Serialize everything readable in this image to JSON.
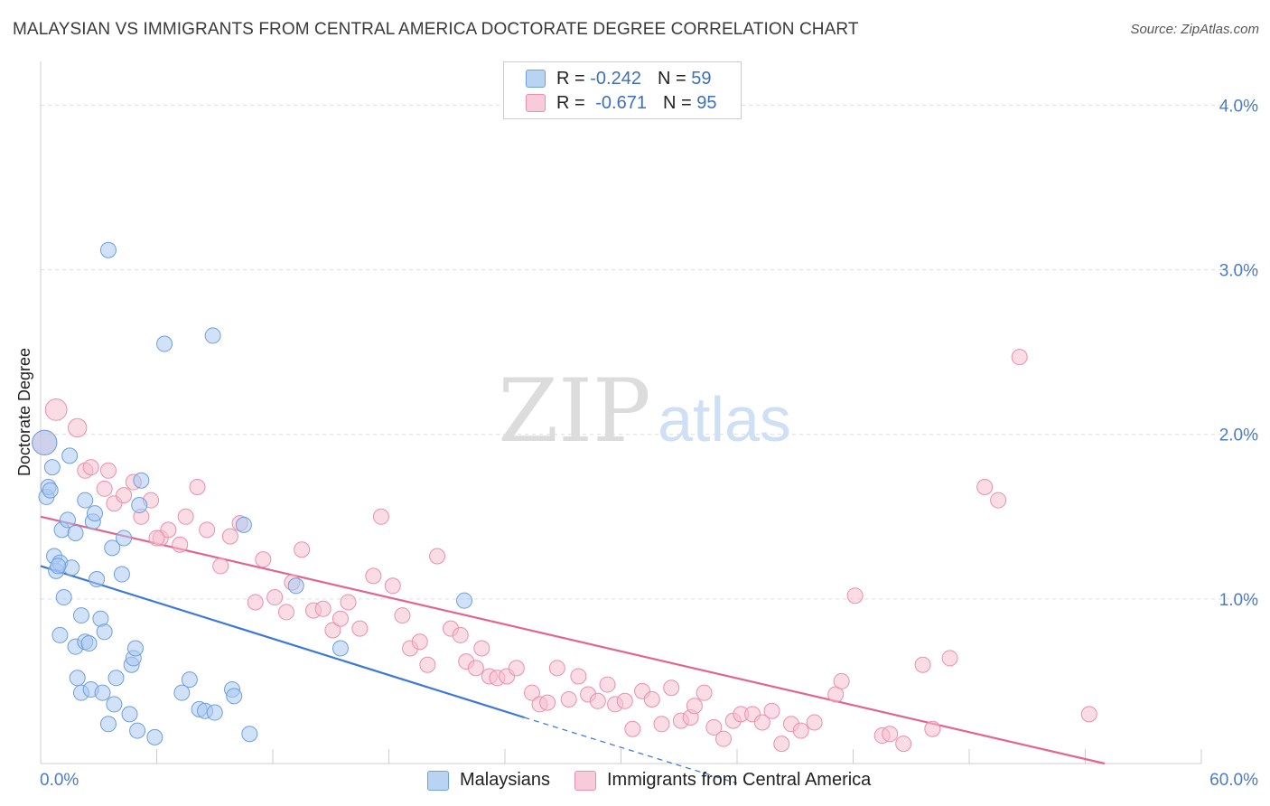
{
  "title": "MALAYSIAN VS IMMIGRANTS FROM CENTRAL AMERICA DOCTORATE DEGREE CORRELATION CHART",
  "source": "Source: ZipAtlas.com",
  "watermark": {
    "zip": "ZIP",
    "atlas": "atlas"
  },
  "legend": {
    "r_label": "R = ",
    "n_label": "N = ",
    "rows": [
      {
        "r": "-0.242",
        "n": "59"
      },
      {
        "r": "-0.671",
        "n": "95"
      }
    ]
  },
  "colors": {
    "blue_fill": "#a9c9f2",
    "blue_stroke": "#6f9fdc",
    "blue_line": "#3b78d8",
    "pink_fill": "#f6bfd0",
    "pink_stroke": "#ec8fad",
    "pink_line": "#e0658f",
    "grid": "#dddddd",
    "tick": "#4a7cc6"
  },
  "chart_data": {
    "type": "scatter",
    "title": "MALAYSIAN VS IMMIGRANTS FROM CENTRAL AMERICA DOCTORATE DEGREE CORRELATION CHART",
    "xlabel": "",
    "ylabel": "Doctorate Degree",
    "xlim": [
      0,
      60
    ],
    "ylim": [
      0,
      4.2
    ],
    "x_tick_labels": [
      "0.0%",
      "60.0%"
    ],
    "y_ticks": [
      1.0,
      2.0,
      3.0,
      4.0
    ],
    "y_tick_labels": [
      "1.0%",
      "2.0%",
      "3.0%",
      "4.0%"
    ],
    "grid": true,
    "series": [
      {
        "name": "Malaysians",
        "r": -0.242,
        "n": 59,
        "trend": {
          "x0": 0,
          "y0": 1.2,
          "x1": 25,
          "y1": 0.28,
          "dash_to_x": 36,
          "dash_to_y": -0.12
        },
        "points": [
          [
            0.2,
            1.95,
            1.6
          ],
          [
            0.3,
            1.62,
            1.0
          ],
          [
            0.4,
            1.68,
            1.0
          ],
          [
            0.6,
            1.8,
            1.0
          ],
          [
            0.7,
            1.26,
            1.0
          ],
          [
            0.8,
            1.17,
            1.0
          ],
          [
            1.0,
            1.22,
            1.0
          ],
          [
            1.1,
            1.42,
            1.0
          ],
          [
            1.2,
            1.01,
            1.0
          ],
          [
            1.4,
            1.48,
            1.0
          ],
          [
            1.5,
            1.87,
            1.0
          ],
          [
            1.6,
            1.19,
            1.0
          ],
          [
            1.8,
            0.71,
            1.0
          ],
          [
            1.8,
            1.4,
            1.0
          ],
          [
            1.9,
            0.52,
            1.0
          ],
          [
            2.1,
            0.9,
            1.0
          ],
          [
            2.1,
            0.43,
            1.0
          ],
          [
            2.3,
            1.6,
            1.0
          ],
          [
            2.3,
            0.74,
            1.0
          ],
          [
            2.5,
            0.73,
            1.0
          ],
          [
            2.6,
            0.45,
            1.0
          ],
          [
            2.7,
            1.47,
            1.0
          ],
          [
            2.8,
            1.52,
            1.0
          ],
          [
            2.9,
            1.12,
            1.0
          ],
          [
            3.1,
            0.88,
            1.0
          ],
          [
            3.2,
            0.43,
            1.0
          ],
          [
            3.3,
            0.8,
            1.0
          ],
          [
            3.5,
            0.24,
            1.0
          ],
          [
            3.5,
            3.12,
            1.0
          ],
          [
            3.7,
            1.31,
            1.0
          ],
          [
            3.8,
            0.36,
            1.0
          ],
          [
            3.9,
            0.52,
            1.0
          ],
          [
            4.2,
            1.15,
            1.0
          ],
          [
            4.3,
            1.37,
            1.0
          ],
          [
            4.6,
            0.3,
            1.0
          ],
          [
            4.7,
            0.6,
            1.0
          ],
          [
            4.8,
            0.64,
            1.0
          ],
          [
            4.9,
            0.7,
            1.0
          ],
          [
            5.0,
            0.2,
            1.0
          ],
          [
            5.2,
            1.72,
            1.0
          ],
          [
            5.1,
            1.57,
            1.0
          ],
          [
            5.9,
            0.16,
            1.0
          ],
          [
            6.4,
            2.55,
            1.0
          ],
          [
            7.3,
            0.43,
            1.0
          ],
          [
            7.7,
            0.51,
            1.0
          ],
          [
            8.2,
            0.33,
            1.0
          ],
          [
            8.5,
            0.32,
            1.0
          ],
          [
            8.9,
            2.6,
            1.0
          ],
          [
            9.0,
            0.31,
            1.0
          ],
          [
            9.9,
            0.45,
            1.0
          ],
          [
            10.0,
            0.41,
            1.0
          ],
          [
            10.5,
            1.45,
            1.0
          ],
          [
            10.8,
            0.18,
            1.0
          ],
          [
            13.2,
            1.08,
            1.0
          ],
          [
            15.5,
            0.7,
            1.0
          ],
          [
            21.9,
            0.99,
            1.0
          ],
          [
            0.9,
            1.2,
            1.0
          ],
          [
            1.0,
            0.78,
            1.0
          ],
          [
            0.5,
            1.66,
            1.0
          ]
        ]
      },
      {
        "name": "Immigrants from Central America",
        "r": -0.671,
        "n": 95,
        "trend": {
          "x0": 0,
          "y0": 1.5,
          "x1": 55,
          "y1": 0.0
        },
        "points": [
          [
            0.2,
            1.95,
            1.6
          ],
          [
            0.8,
            2.15,
            1.4
          ],
          [
            1.9,
            2.04,
            1.2
          ],
          [
            2.3,
            1.78,
            1.0
          ],
          [
            2.6,
            1.8,
            1.0
          ],
          [
            3.3,
            1.67,
            1.0
          ],
          [
            3.8,
            1.58,
            1.0
          ],
          [
            4.3,
            1.63,
            1.0
          ],
          [
            4.8,
            1.71,
            1.0
          ],
          [
            5.2,
            1.5,
            1.0
          ],
          [
            5.7,
            1.6,
            1.0
          ],
          [
            6.2,
            1.37,
            1.0
          ],
          [
            6.6,
            1.42,
            1.0
          ],
          [
            7.2,
            1.33,
            1.0
          ],
          [
            7.5,
            1.5,
            1.0
          ],
          [
            8.1,
            1.68,
            1.0
          ],
          [
            8.6,
            1.42,
            1.0
          ],
          [
            9.3,
            1.2,
            1.0
          ],
          [
            9.8,
            1.38,
            1.0
          ],
          [
            10.3,
            1.46,
            1.0
          ],
          [
            11.1,
            0.98,
            1.0
          ],
          [
            11.5,
            1.24,
            1.0
          ],
          [
            12.1,
            1.01,
            1.0
          ],
          [
            12.7,
            0.92,
            1.0
          ],
          [
            13.0,
            1.1,
            1.0
          ],
          [
            13.5,
            1.3,
            1.0
          ],
          [
            14.1,
            0.93,
            1.0
          ],
          [
            14.6,
            0.94,
            1.0
          ],
          [
            15.1,
            0.81,
            1.0
          ],
          [
            15.5,
            0.88,
            1.0
          ],
          [
            15.9,
            0.98,
            1.0
          ],
          [
            16.5,
            0.82,
            1.0
          ],
          [
            17.2,
            1.14,
            1.0
          ],
          [
            17.6,
            1.5,
            1.0
          ],
          [
            18.2,
            1.08,
            1.0
          ],
          [
            18.7,
            0.9,
            1.0
          ],
          [
            19.1,
            0.7,
            1.0
          ],
          [
            19.6,
            0.74,
            1.0
          ],
          [
            20.0,
            0.6,
            1.0
          ],
          [
            20.5,
            1.26,
            1.0
          ],
          [
            21.2,
            0.82,
            1.0
          ],
          [
            21.7,
            0.78,
            1.0
          ],
          [
            22.0,
            0.62,
            1.0
          ],
          [
            22.5,
            0.58,
            1.0
          ],
          [
            22.8,
            0.7,
            1.0
          ],
          [
            23.2,
            0.53,
            1.0
          ],
          [
            23.6,
            0.52,
            1.0
          ],
          [
            24.1,
            0.53,
            1.0
          ],
          [
            24.6,
            0.58,
            1.0
          ],
          [
            25.4,
            0.43,
            1.0
          ],
          [
            25.8,
            0.36,
            1.0
          ],
          [
            26.2,
            0.37,
            1.0
          ],
          [
            26.7,
            0.58,
            1.0
          ],
          [
            27.3,
            0.39,
            1.0
          ],
          [
            27.8,
            0.53,
            1.0
          ],
          [
            28.3,
            0.42,
            1.0
          ],
          [
            28.8,
            0.38,
            1.0
          ],
          [
            29.3,
            0.48,
            1.0
          ],
          [
            29.7,
            0.36,
            1.0
          ],
          [
            30.2,
            0.38,
            1.0
          ],
          [
            30.6,
            0.21,
            1.0
          ],
          [
            31.1,
            0.44,
            1.0
          ],
          [
            31.6,
            0.39,
            1.0
          ],
          [
            32.1,
            0.24,
            1.0
          ],
          [
            32.6,
            0.46,
            1.0
          ],
          [
            33.1,
            0.26,
            1.0
          ],
          [
            33.6,
            0.28,
            1.0
          ],
          [
            33.8,
            0.35,
            1.0
          ],
          [
            34.3,
            0.43,
            1.0
          ],
          [
            34.8,
            0.22,
            1.0
          ],
          [
            35.3,
            0.15,
            1.0
          ],
          [
            35.8,
            0.26,
            1.0
          ],
          [
            36.2,
            0.3,
            1.0
          ],
          [
            36.8,
            0.3,
            1.0
          ],
          [
            37.3,
            0.25,
            1.0
          ],
          [
            37.8,
            0.32,
            1.0
          ],
          [
            38.3,
            0.12,
            1.0
          ],
          [
            38.8,
            0.24,
            1.0
          ],
          [
            39.3,
            0.2,
            1.0
          ],
          [
            40.0,
            0.25,
            1.0
          ],
          [
            41.1,
            0.42,
            1.0
          ],
          [
            41.4,
            0.5,
            1.0
          ],
          [
            42.1,
            1.02,
            1.0
          ],
          [
            43.5,
            0.17,
            1.0
          ],
          [
            43.9,
            0.18,
            1.0
          ],
          [
            44.6,
            0.12,
            1.0
          ],
          [
            45.6,
            0.6,
            1.0
          ],
          [
            46.1,
            0.21,
            1.0
          ],
          [
            47.0,
            0.64,
            1.0
          ],
          [
            48.8,
            1.68,
            1.0
          ],
          [
            49.5,
            1.6,
            1.0
          ],
          [
            50.6,
            2.47,
            1.0
          ],
          [
            54.2,
            0.3,
            1.0
          ],
          [
            3.5,
            1.78,
            1.0
          ],
          [
            6.0,
            1.37,
            1.0
          ]
        ]
      }
    ]
  },
  "bottom_legend": [
    "Malaysians",
    "Immigrants from Central America"
  ]
}
